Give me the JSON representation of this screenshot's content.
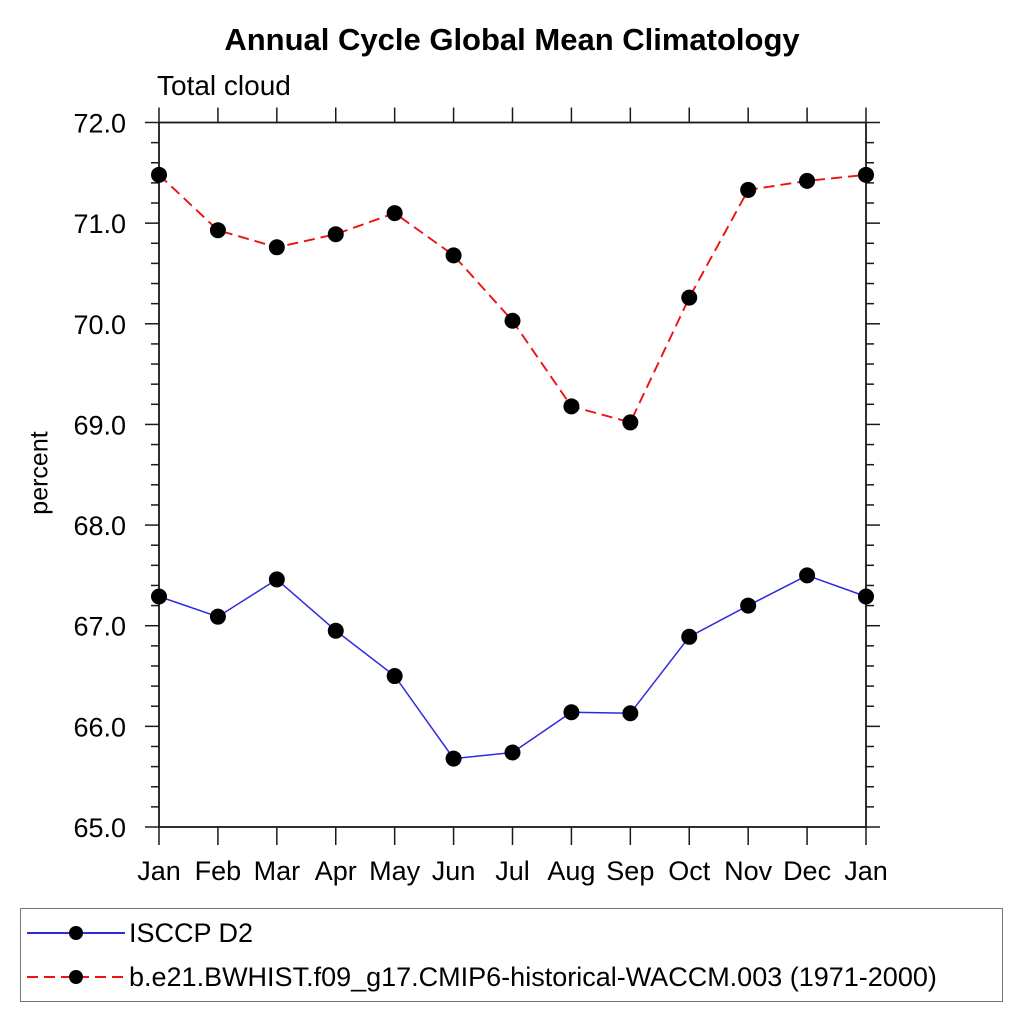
{
  "chart_data": {
    "type": "line",
    "title": "Annual Cycle Global Mean Climatology",
    "subtitle": "Total cloud",
    "ylabel": "percent",
    "xlabel": "",
    "categories": [
      "Jan",
      "Feb",
      "Mar",
      "Apr",
      "May",
      "Jun",
      "Jul",
      "Aug",
      "Sep",
      "Oct",
      "Nov",
      "Dec",
      "Jan"
    ],
    "ylim": [
      65.0,
      72.0
    ],
    "ytick_labels": [
      "65.0",
      "66.0",
      "67.0",
      "68.0",
      "69.0",
      "70.0",
      "71.0",
      "72.0"
    ],
    "minor_tick_interval": 0.2,
    "grid": false,
    "legend_position": "bottom",
    "axis_color": "#1a1a1a",
    "series": [
      {
        "name": "ISCCP D2",
        "color": "#2a2ae0",
        "line_style": "solid",
        "marker": "circle",
        "marker_color": "#000000",
        "values": [
          67.29,
          67.09,
          67.46,
          66.95,
          66.5,
          65.68,
          65.74,
          66.14,
          66.13,
          66.89,
          67.2,
          67.5,
          67.29
        ]
      },
      {
        "name": "b.e21.BWHIST.f09_g17.CMIP6-historical-WACCM.003 (1971-2000)",
        "color": "#ee1111",
        "line_style": "dashed",
        "marker": "circle",
        "marker_color": "#000000",
        "values": [
          71.48,
          70.93,
          70.76,
          70.89,
          71.1,
          70.68,
          70.03,
          69.18,
          69.02,
          70.26,
          71.33,
          71.42,
          71.48
        ]
      }
    ]
  }
}
